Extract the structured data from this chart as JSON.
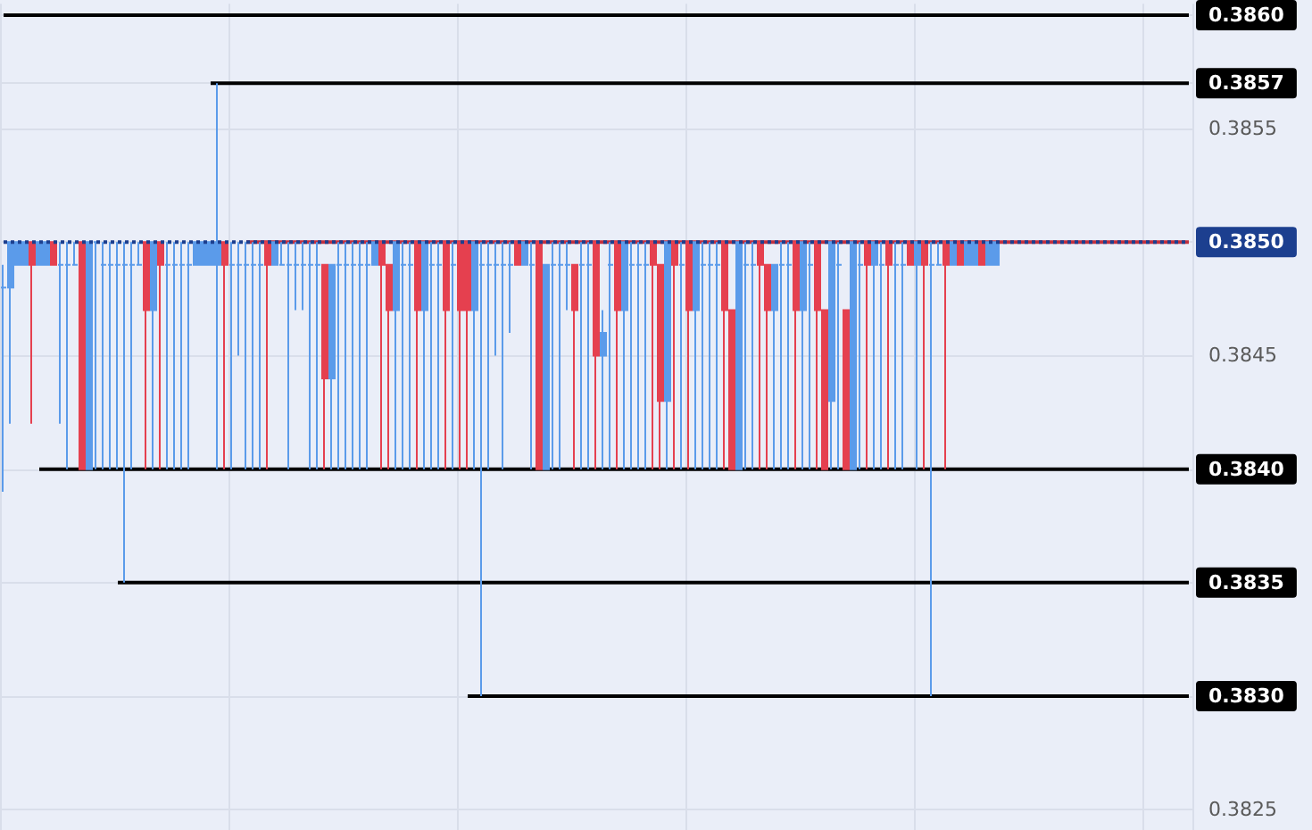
{
  "chart_data": {
    "type": "candlestick",
    "categories": [
      null,
      null,
      null,
      null,
      null,
      null,
      null,
      null,
      null,
      null,
      null,
      null,
      null,
      null,
      null,
      null,
      null,
      null,
      null,
      null,
      null,
      null,
      null,
      null,
      null,
      null,
      null,
      null,
      null,
      null,
      null,
      null,
      null,
      null,
      null,
      null,
      null,
      null,
      null,
      null,
      null,
      null,
      null,
      null,
      null,
      null,
      null,
      null,
      null,
      null,
      null,
      null,
      null,
      null,
      null,
      null,
      null,
      null,
      null,
      null,
      null,
      null,
      null,
      null,
      null,
      null,
      null,
      null,
      null,
      null,
      null,
      null,
      null,
      null,
      null,
      null,
      null,
      null,
      null,
      null,
      null,
      null,
      null,
      null,
      null,
      null,
      null,
      null,
      null,
      null,
      null,
      null,
      null,
      null,
      null,
      null,
      null,
      null,
      null,
      null,
      null,
      null,
      null,
      null,
      null,
      null,
      null,
      null,
      null,
      null,
      null,
      null,
      null,
      null,
      null,
      null,
      null,
      null,
      null,
      null,
      null,
      null,
      null,
      null,
      null,
      null,
      null,
      null,
      null,
      null,
      null,
      null,
      null,
      null,
      null,
      null,
      null,
      null,
      null,
      null,
      null,
      null,
      null,
      null,
      null,
      null,
      null,
      null,
      null,
      null,
      null,
      null,
      null,
      null,
      null,
      null,
      null,
      null,
      null,
      null,
      null,
      null,
      null,
      null,
      null,
      null,
      null
    ],
    "ohlc": [
      [
        0.3848,
        0.3849,
        0.3839,
        0.3848
      ],
      [
        0.3848,
        0.385,
        0.3842,
        0.385
      ],
      [
        0.3849,
        0.385,
        0.3849,
        0.385
      ],
      [
        0.3849,
        0.385,
        0.3849,
        0.385
      ],
      [
        0.385,
        0.385,
        0.3842,
        0.3849
      ],
      [
        0.3849,
        0.385,
        0.3849,
        0.385
      ],
      [
        0.3849,
        0.385,
        0.3849,
        0.385
      ],
      [
        0.385,
        0.385,
        0.3849,
        0.3849
      ],
      [
        0.3849,
        0.385,
        0.3842,
        0.3849
      ],
      [
        0.3849,
        0.385,
        0.384,
        0.3849
      ],
      [
        0.3849,
        0.385,
        0.3849,
        0.3849
      ],
      [
        0.385,
        0.385,
        0.384,
        0.384
      ],
      [
        0.384,
        0.385,
        0.384,
        0.385
      ],
      [
        0.385,
        0.385,
        0.384,
        0.385
      ],
      [
        0.3849,
        0.385,
        0.384,
        0.3849
      ],
      [
        0.3849,
        0.385,
        0.384,
        0.3849
      ],
      [
        0.3849,
        0.385,
        0.384,
        0.3849
      ],
      [
        0.3849,
        0.385,
        0.3835,
        0.3849
      ],
      [
        0.3849,
        0.385,
        0.384,
        0.3849
      ],
      [
        0.3849,
        0.385,
        0.3849,
        0.3849
      ],
      [
        0.385,
        0.385,
        0.384,
        0.3847
      ],
      [
        0.3847,
        0.385,
        0.384,
        0.385
      ],
      [
        0.385,
        0.385,
        0.384,
        0.3849
      ],
      [
        0.3849,
        0.385,
        0.384,
        0.3849
      ],
      [
        0.3849,
        0.385,
        0.384,
        0.3849
      ],
      [
        0.3849,
        0.385,
        0.384,
        0.3849
      ],
      [
        0.3849,
        0.385,
        0.384,
        0.3849
      ],
      [
        0.3849,
        0.385,
        0.3849,
        0.385
      ],
      [
        0.3849,
        0.385,
        0.3849,
        0.385
      ],
      [
        0.3849,
        0.385,
        0.3849,
        0.385
      ],
      [
        0.3849,
        0.3857,
        0.384,
        0.385
      ],
      [
        0.385,
        0.385,
        0.384,
        0.3849
      ],
      [
        0.3849,
        0.385,
        0.384,
        0.3849
      ],
      [
        0.3849,
        0.385,
        0.3845,
        0.3849
      ],
      [
        0.3849,
        0.385,
        0.384,
        0.3849
      ],
      [
        0.3849,
        0.385,
        0.384,
        0.3849
      ],
      [
        0.3849,
        0.385,
        0.384,
        0.3849
      ],
      [
        0.385,
        0.385,
        0.384,
        0.3849
      ],
      [
        0.3849,
        0.385,
        0.3849,
        0.385
      ],
      [
        0.3849,
        0.385,
        0.3849,
        0.3849
      ],
      [
        0.3849,
        0.385,
        0.384,
        0.3849
      ],
      [
        0.3849,
        0.385,
        0.3847,
        0.3849
      ],
      [
        0.3849,
        0.385,
        0.3847,
        0.3849
      ],
      [
        0.3849,
        0.385,
        0.384,
        0.3849
      ],
      [
        0.3849,
        0.385,
        0.384,
        0.3849
      ],
      [
        0.3849,
        0.3849,
        0.384,
        0.3844
      ],
      [
        0.3844,
        0.3849,
        0.384,
        0.3849
      ],
      [
        0.3849,
        0.385,
        0.384,
        0.3849
      ],
      [
        0.3849,
        0.385,
        0.384,
        0.3849
      ],
      [
        0.3849,
        0.385,
        0.384,
        0.3849
      ],
      [
        0.3849,
        0.385,
        0.384,
        0.3849
      ],
      [
        0.3849,
        0.385,
        0.384,
        0.3849
      ],
      [
        0.3849,
        0.385,
        0.3849,
        0.385
      ],
      [
        0.385,
        0.385,
        0.384,
        0.3849
      ],
      [
        0.3849,
        0.3849,
        0.384,
        0.3847
      ],
      [
        0.3847,
        0.385,
        0.384,
        0.385
      ],
      [
        0.3849,
        0.385,
        0.384,
        0.3849
      ],
      [
        0.3849,
        0.385,
        0.384,
        0.3849
      ],
      [
        0.385,
        0.385,
        0.384,
        0.3847
      ],
      [
        0.3847,
        0.385,
        0.384,
        0.385
      ],
      [
        0.3849,
        0.385,
        0.384,
        0.3849
      ],
      [
        0.3849,
        0.385,
        0.384,
        0.3849
      ],
      [
        0.385,
        0.385,
        0.384,
        0.3847
      ],
      [
        0.3849,
        0.385,
        0.384,
        0.3849
      ],
      [
        0.385,
        0.385,
        0.384,
        0.3847
      ],
      [
        0.385,
        0.385,
        0.384,
        0.3847
      ],
      [
        0.3847,
        0.385,
        0.384,
        0.385
      ],
      [
        0.3849,
        0.385,
        0.383,
        0.3849
      ],
      [
        0.3849,
        0.385,
        0.384,
        0.3849
      ],
      [
        0.3849,
        0.385,
        0.3845,
        0.3849
      ],
      [
        0.3849,
        0.385,
        0.384,
        0.3849
      ],
      [
        0.3849,
        0.385,
        0.3846,
        0.3849
      ],
      [
        0.385,
        0.385,
        0.3849,
        0.3849
      ],
      [
        0.3849,
        0.385,
        0.3849,
        0.385
      ],
      [
        0.3849,
        0.385,
        0.384,
        0.3849
      ],
      [
        0.385,
        0.385,
        0.384,
        0.384
      ],
      [
        0.384,
        0.3849,
        0.384,
        0.3849
      ],
      [
        0.3849,
        0.385,
        0.384,
        0.3849
      ],
      [
        0.3849,
        0.385,
        0.384,
        0.3849
      ],
      [
        0.3849,
        0.385,
        0.3847,
        0.3849
      ],
      [
        0.3849,
        0.3849,
        0.384,
        0.3847
      ],
      [
        0.3849,
        0.385,
        0.384,
        0.3849
      ],
      [
        0.3849,
        0.385,
        0.384,
        0.3849
      ],
      [
        0.385,
        0.385,
        0.384,
        0.3845
      ],
      [
        0.3845,
        0.3847,
        0.384,
        0.3846
      ],
      [
        0.3849,
        0.385,
        0.384,
        0.3849
      ],
      [
        0.385,
        0.385,
        0.384,
        0.3847
      ],
      [
        0.3847,
        0.385,
        0.384,
        0.385
      ],
      [
        0.3849,
        0.385,
        0.384,
        0.3849
      ],
      [
        0.3849,
        0.385,
        0.384,
        0.3849
      ],
      [
        0.3849,
        0.385,
        0.384,
        0.3849
      ],
      [
        0.385,
        0.385,
        0.384,
        0.3849
      ],
      [
        0.3849,
        0.3849,
        0.384,
        0.3843
      ],
      [
        0.3843,
        0.385,
        0.384,
        0.385
      ],
      [
        0.385,
        0.385,
        0.384,
        0.3849
      ],
      [
        0.3849,
        0.385,
        0.384,
        0.3849
      ],
      [
        0.385,
        0.385,
        0.384,
        0.3847
      ],
      [
        0.3847,
        0.385,
        0.384,
        0.385
      ],
      [
        0.3849,
        0.385,
        0.384,
        0.3849
      ],
      [
        0.3849,
        0.385,
        0.384,
        0.3849
      ],
      [
        0.3849,
        0.385,
        0.384,
        0.3849
      ],
      [
        0.385,
        0.385,
        0.384,
        0.3847
      ],
      [
        0.3847,
        0.3847,
        0.384,
        0.384
      ],
      [
        0.384,
        0.385,
        0.384,
        0.385
      ],
      [
        0.3849,
        0.385,
        0.384,
        0.3849
      ],
      [
        0.3849,
        0.385,
        0.384,
        0.3849
      ],
      [
        0.385,
        0.385,
        0.384,
        0.3849
      ],
      [
        0.3849,
        0.3849,
        0.384,
        0.3847
      ],
      [
        0.3847,
        0.3849,
        0.384,
        0.3849
      ],
      [
        0.3849,
        0.385,
        0.384,
        0.3849
      ],
      [
        0.3849,
        0.385,
        0.384,
        0.3849
      ],
      [
        0.385,
        0.385,
        0.384,
        0.3847
      ],
      [
        0.3847,
        0.385,
        0.384,
        0.385
      ],
      [
        0.3849,
        0.385,
        0.384,
        0.3849
      ],
      [
        0.385,
        0.385,
        0.384,
        0.3847
      ],
      [
        0.3847,
        0.3847,
        0.384,
        0.384
      ],
      [
        0.3843,
        0.385,
        0.384,
        0.385
      ],
      [
        0.3849,
        0.385,
        0.384,
        0.3849
      ],
      [
        0.3847,
        0.3847,
        0.384,
        0.384
      ],
      [
        0.384,
        0.385,
        0.384,
        0.385
      ],
      [
        0.3849,
        0.385,
        0.384,
        0.3849
      ],
      [
        0.385,
        0.385,
        0.384,
        0.3849
      ],
      [
        0.3849,
        0.385,
        0.384,
        0.385
      ],
      [
        0.3849,
        0.385,
        0.384,
        0.3849
      ],
      [
        0.385,
        0.385,
        0.384,
        0.3849
      ],
      [
        0.3849,
        0.385,
        0.384,
        0.3849
      ],
      [
        0.3849,
        0.385,
        0.384,
        0.3849
      ],
      [
        0.385,
        0.385,
        0.3849,
        0.3849
      ],
      [
        0.3849,
        0.385,
        0.384,
        0.385
      ],
      [
        0.385,
        0.385,
        0.384,
        0.3849
      ],
      [
        0.3849,
        0.385,
        0.383,
        0.3849
      ],
      [
        0.3849,
        0.385,
        0.3849,
        0.3849
      ],
      [
        0.385,
        0.385,
        0.384,
        0.3849
      ],
      [
        0.3849,
        0.385,
        0.3849,
        0.385
      ],
      [
        0.385,
        0.385,
        0.3849,
        0.3849
      ],
      [
        0.3849,
        0.385,
        0.3849,
        0.385
      ],
      [
        0.3849,
        0.385,
        0.3849,
        0.385
      ],
      [
        0.385,
        0.385,
        0.3849,
        0.3849
      ],
      [
        0.3849,
        0.385,
        0.3849,
        0.385
      ],
      [
        0.3849,
        0.385,
        0.3849,
        0.385
      ],
      null,
      null,
      null,
      null,
      null,
      null,
      null,
      null,
      null,
      null,
      null,
      null,
      null,
      null,
      null,
      null,
      null,
      null,
      null,
      null,
      null,
      null,
      null,
      null,
      null,
      null,
      null
    ],
    "colors": [
      "#5b9bea",
      "#5b9bea",
      "#5b9bea",
      "#5b9bea",
      "#e5404f",
      "#5b9bea",
      "#5b9bea",
      "#e5404f",
      "#5b9bea",
      "#5b9bea",
      "#5b9bea",
      "#e5404f",
      "#5b9bea",
      "#5b9bea",
      "#5b9bea",
      "#5b9bea",
      "#5b9bea",
      "#5b9bea",
      "#5b9bea",
      "#5b9bea",
      "#e5404f",
      "#5b9bea",
      "#e5404f",
      "#5b9bea",
      "#5b9bea",
      "#5b9bea",
      "#5b9bea",
      "#5b9bea",
      "#5b9bea",
      "#5b9bea",
      "#5b9bea",
      "#e5404f",
      "#5b9bea",
      "#5b9bea",
      "#5b9bea",
      "#5b9bea",
      "#5b9bea",
      "#e5404f",
      "#5b9bea",
      "#5b9bea",
      "#5b9bea",
      "#5b9bea",
      "#5b9bea",
      "#5b9bea",
      "#5b9bea",
      "#e5404f",
      "#5b9bea",
      "#5b9bea",
      "#5b9bea",
      "#5b9bea",
      "#5b9bea",
      "#5b9bea",
      "#5b9bea",
      "#e5404f",
      "#e5404f",
      "#5b9bea",
      "#5b9bea",
      "#5b9bea",
      "#e5404f",
      "#5b9bea",
      "#5b9bea",
      "#5b9bea",
      "#e5404f",
      "#5b9bea",
      "#e5404f",
      "#e5404f",
      "#5b9bea",
      "#5b9bea",
      "#5b9bea",
      "#5b9bea",
      "#5b9bea",
      "#5b9bea",
      "#e5404f",
      "#5b9bea",
      "#5b9bea",
      "#e5404f",
      "#5b9bea",
      "#5b9bea",
      "#5b9bea",
      "#5b9bea",
      "#e5404f",
      "#5b9bea",
      "#5b9bea",
      "#e5404f",
      "#5b9bea",
      "#5b9bea",
      "#e5404f",
      "#5b9bea",
      "#5b9bea",
      "#5b9bea",
      "#5b9bea",
      "#e5404f",
      "#e5404f",
      "#5b9bea",
      "#e5404f",
      "#5b9bea",
      "#e5404f",
      "#5b9bea",
      "#5b9bea",
      "#5b9bea",
      "#5b9bea",
      "#e5404f",
      "#e5404f",
      "#5b9bea",
      "#5b9bea",
      "#5b9bea",
      "#e5404f",
      "#e5404f",
      "#5b9bea",
      "#5b9bea",
      "#5b9bea",
      "#e5404f",
      "#5b9bea",
      "#5b9bea",
      "#e5404f",
      "#e5404f",
      "#5b9bea",
      "#5b9bea",
      "#e5404f",
      "#5b9bea",
      "#5b9bea",
      "#e5404f",
      "#5b9bea",
      "#5b9bea",
      "#e5404f",
      "#5b9bea",
      "#5b9bea",
      "#e5404f",
      "#5b9bea",
      "#e5404f",
      "#5b9bea",
      "#5b9bea",
      "#e5404f",
      "#5b9bea",
      "#e5404f",
      "#5b9bea",
      "#5b9bea",
      "#e5404f",
      "#5b9bea",
      "#5b9bea",
      null,
      null,
      null,
      null,
      null,
      null,
      null,
      null,
      null,
      null,
      null,
      null,
      null,
      null,
      null,
      null,
      null,
      null,
      null,
      null,
      null,
      null,
      null,
      null,
      null,
      null,
      null
    ],
    "series": [
      {
        "type": "line",
        "color": "#000000",
        "values": [
          0.386,
          0.386,
          0.386,
          0.386,
          0.386,
          0.386,
          0.386,
          0.386,
          0.386,
          0.386,
          0.386,
          0.386,
          0.386,
          0.386,
          0.386,
          0.386,
          0.386,
          0.386,
          0.386,
          0.386,
          0.386,
          0.386,
          0.386,
          0.386,
          0.386,
          0.386,
          0.386,
          0.386,
          0.386,
          0.386,
          0.386,
          0.386,
          0.386,
          0.386,
          0.386,
          0.386,
          0.386,
          0.386,
          0.386,
          0.386,
          0.386,
          0.386,
          0.386,
          0.386,
          0.386,
          0.386,
          0.386,
          0.386,
          0.386,
          0.386,
          0.386,
          0.386,
          0.386,
          0.386,
          0.386,
          0.386,
          0.386,
          0.386,
          0.386,
          0.386,
          0.386,
          0.386,
          0.386,
          0.386,
          0.386,
          0.386,
          0.386,
          0.386,
          0.386,
          0.386,
          0.386,
          0.386,
          0.386,
          0.386,
          0.386,
          0.386,
          0.386,
          0.386,
          0.386,
          0.386,
          0.386,
          0.386,
          0.386,
          0.386,
          0.386,
          0.386,
          0.386,
          0.386,
          0.386,
          0.386,
          0.386,
          0.386,
          0.386,
          0.386,
          0.386,
          0.386,
          0.386,
          0.386,
          0.386,
          0.386,
          0.386,
          0.386,
          0.386,
          0.386,
          0.386,
          0.386,
          0.386,
          0.386,
          0.386,
          0.386,
          0.386,
          0.386,
          0.386,
          0.386,
          0.386,
          0.386,
          0.386,
          0.386,
          0.386,
          0.386,
          0.386,
          0.386,
          0.386,
          0.386,
          0.386,
          0.386,
          0.386,
          0.386,
          0.386,
          0.386,
          0.386,
          0.386,
          0.386,
          0.386,
          0.386,
          0.386,
          0.386,
          0.386,
          0.386,
          0.386,
          0.386,
          0.386,
          0.386,
          0.386,
          0.386,
          0.386,
          0.386,
          0.386,
          0.386,
          0.386,
          0.386,
          0.386,
          0.386,
          0.386,
          0.386,
          0.386,
          0.386,
          0.386,
          0.386,
          0.386,
          0.386,
          0.386,
          0.386,
          0.386,
          0.386,
          0.386,
          0.386
        ]
      },
      {
        "type": "line",
        "color": "#000000",
        "values": [
          null,
          null,
          null,
          null,
          null,
          null,
          null,
          null,
          null,
          null,
          null,
          null,
          null,
          null,
          null,
          null,
          null,
          null,
          null,
          null,
          null,
          null,
          null,
          null,
          null,
          null,
          null,
          null,
          null,
          0.3857,
          0.3857,
          0.3857,
          0.3857,
          0.3857,
          0.3857,
          0.3857,
          0.3857,
          0.3857,
          0.3857,
          0.3857,
          0.3857,
          0.3857,
          0.3857,
          0.3857,
          0.3857,
          0.3857,
          0.3857,
          0.3857,
          0.3857,
          0.3857,
          0.3857,
          0.3857,
          0.3857,
          0.3857,
          0.3857,
          0.3857,
          0.3857,
          0.3857,
          0.3857,
          0.3857,
          0.3857,
          0.3857,
          0.3857,
          0.3857,
          0.3857,
          0.3857,
          0.3857,
          0.3857,
          0.3857,
          0.3857,
          0.3857,
          0.3857,
          0.3857,
          0.3857,
          0.3857,
          0.3857,
          0.3857,
          0.3857,
          0.3857,
          0.3857,
          0.3857,
          0.3857,
          0.3857,
          0.3857,
          0.3857,
          0.3857,
          0.3857,
          0.3857,
          0.3857,
          0.3857,
          0.3857,
          0.3857,
          0.3857,
          0.3857,
          0.3857,
          0.3857,
          0.3857,
          0.3857,
          0.3857,
          0.3857,
          0.3857,
          0.3857,
          0.3857,
          0.3857,
          0.3857,
          0.3857,
          0.3857,
          0.3857,
          0.3857,
          0.3857,
          0.3857,
          0.3857,
          0.3857,
          0.3857,
          0.3857,
          0.3857,
          0.3857,
          0.3857,
          0.3857,
          0.3857,
          0.3857,
          0.3857,
          0.3857,
          0.3857,
          0.3857,
          0.3857,
          0.3857,
          0.3857,
          0.3857,
          0.3857,
          0.3857,
          0.3857,
          0.3857,
          0.3857,
          0.3857,
          0.3857,
          0.3857,
          0.3857,
          0.3857,
          0.3857,
          0.3857,
          0.3857,
          0.3857,
          0.3857,
          0.3857,
          0.3857,
          0.3857,
          0.3857,
          0.3857,
          0.3857,
          0.3857,
          0.3857,
          0.3857,
          0.3857,
          0.3857,
          0.3857,
          0.3857,
          0.3857,
          0.3857,
          0.3857,
          0.3857,
          0.3857,
          0.3857,
          0.3857,
          0.3857,
          0.3857,
          0.3857
        ]
      },
      {
        "type": "line",
        "color": "#000000",
        "values": [
          null,
          null,
          null,
          null,
          null,
          0.384,
          0.384,
          0.384,
          0.384,
          0.384,
          0.384,
          0.384,
          0.384,
          0.384,
          0.384,
          0.384,
          0.384,
          0.384,
          0.384,
          0.384,
          0.384,
          0.384,
          0.384,
          0.384,
          0.384,
          0.384,
          0.384,
          0.384,
          0.384,
          0.384,
          0.384,
          0.384,
          0.384,
          0.384,
          0.384,
          0.384,
          0.384,
          0.384,
          0.384,
          0.384,
          0.384,
          0.384,
          0.384,
          0.384,
          0.384,
          0.384,
          0.384,
          0.384,
          0.384,
          0.384,
          0.384,
          0.384,
          0.384,
          0.384,
          0.384,
          0.384,
          0.384,
          0.384,
          0.384,
          0.384,
          0.384,
          0.384,
          0.384,
          0.384,
          0.384,
          0.384,
          0.384,
          0.384,
          0.384,
          0.384,
          0.384,
          0.384,
          0.384,
          0.384,
          0.384,
          0.384,
          0.384,
          0.384,
          0.384,
          0.384,
          0.384,
          0.384,
          0.384,
          0.384,
          0.384,
          0.384,
          0.384,
          0.384,
          0.384,
          0.384,
          0.384,
          0.384,
          0.384,
          0.384,
          0.384,
          0.384,
          0.384,
          0.384,
          0.384,
          0.384,
          0.384,
          0.384,
          0.384,
          0.384,
          0.384,
          0.384,
          0.384,
          0.384,
          0.384,
          0.384,
          0.384,
          0.384,
          0.384,
          0.384,
          0.384,
          0.384,
          0.384,
          0.384,
          0.384,
          0.384,
          0.384,
          0.384,
          0.384,
          0.384,
          0.384,
          0.384,
          0.384,
          0.384,
          0.384,
          0.384,
          0.384,
          0.384,
          0.384,
          0.384,
          0.384,
          0.384,
          0.384,
          0.384,
          0.384,
          0.384,
          0.384,
          0.384,
          0.384,
          0.384,
          0.384,
          0.384,
          0.384,
          0.384,
          0.384,
          0.384,
          0.384,
          0.384,
          0.384,
          0.384,
          0.384,
          0.384,
          0.384,
          0.384,
          0.384,
          0.384,
          0.384,
          0.384,
          0.384,
          0.384,
          0.384,
          0.384,
          0.384
        ]
      },
      {
        "type": "line",
        "color": "#000000",
        "values": [
          null,
          null,
          null,
          null,
          null,
          null,
          null,
          null,
          null,
          null,
          null,
          null,
          null,
          null,
          null,
          null,
          0.3835,
          0.3835,
          0.3835,
          0.3835,
          0.3835,
          0.3835,
          0.3835,
          0.3835,
          0.3835,
          0.3835,
          0.3835,
          0.3835,
          0.3835,
          0.3835,
          0.3835,
          0.3835,
          0.3835,
          0.3835,
          0.3835,
          0.3835,
          0.3835,
          0.3835,
          0.3835,
          0.3835,
          0.3835,
          0.3835,
          0.3835,
          0.3835,
          0.3835,
          0.3835,
          0.3835,
          0.3835,
          0.3835,
          0.3835,
          0.3835,
          0.3835,
          0.3835,
          0.3835,
          0.3835,
          0.3835,
          0.3835,
          0.3835,
          0.3835,
          0.3835,
          0.3835,
          0.3835,
          0.3835,
          0.3835,
          0.3835,
          0.3835,
          0.3835,
          0.3835,
          0.3835,
          0.3835,
          0.3835,
          0.3835,
          0.3835,
          0.3835,
          0.3835,
          0.3835,
          0.3835,
          0.3835,
          0.3835,
          0.3835,
          0.3835,
          0.3835,
          0.3835,
          0.3835,
          0.3835,
          0.3835,
          0.3835,
          0.3835,
          0.3835,
          0.3835,
          0.3835,
          0.3835,
          0.3835,
          0.3835,
          0.3835,
          0.3835,
          0.3835,
          0.3835,
          0.3835,
          0.3835,
          0.3835,
          0.3835,
          0.3835,
          0.3835,
          0.3835,
          0.3835,
          0.3835,
          0.3835,
          0.3835,
          0.3835,
          0.3835,
          0.3835,
          0.3835,
          0.3835,
          0.3835,
          0.3835,
          0.3835,
          0.3835,
          0.3835,
          0.3835,
          0.3835,
          0.3835,
          0.3835,
          0.3835,
          0.3835,
          0.3835,
          0.3835,
          0.3835,
          0.3835,
          0.3835,
          0.3835,
          0.3835,
          0.3835,
          0.3835,
          0.3835,
          0.3835,
          0.3835,
          0.3835,
          0.3835,
          0.3835,
          0.3835,
          0.3835,
          0.3835,
          0.3835,
          0.3835,
          0.3835,
          0.3835,
          0.3835,
          0.3835,
          0.3835,
          0.3835,
          0.3835,
          0.3835,
          0.3835,
          0.3835,
          0.3835,
          0.3835,
          0.3835,
          0.3835,
          0.3835,
          0.3835,
          0.3835,
          0.3835,
          0.3835,
          0.3835,
          0.3835,
          0.3835
        ]
      },
      {
        "type": "line",
        "color": "#000000",
        "values": [
          null,
          null,
          null,
          null,
          null,
          null,
          null,
          null,
          null,
          null,
          null,
          null,
          null,
          null,
          null,
          null,
          null,
          null,
          null,
          null,
          null,
          null,
          null,
          null,
          null,
          null,
          null,
          null,
          null,
          null,
          null,
          null,
          null,
          null,
          null,
          null,
          null,
          null,
          null,
          null,
          null,
          null,
          null,
          null,
          null,
          null,
          null,
          null,
          null,
          null,
          null,
          null,
          null,
          null,
          null,
          null,
          null,
          null,
          null,
          null,
          null,
          null,
          null,
          null,
          null,
          0.383,
          0.383,
          0.383,
          0.383,
          0.383,
          0.383,
          0.383,
          0.383,
          0.383,
          0.383,
          0.383,
          0.383,
          0.383,
          0.383,
          0.383,
          0.383,
          0.383,
          0.383,
          0.383,
          0.383,
          0.383,
          0.383,
          0.383,
          0.383,
          0.383,
          0.383,
          0.383,
          0.383,
          0.383,
          0.383,
          0.383,
          0.383,
          0.383,
          0.383,
          0.383,
          0.383,
          0.383,
          0.383,
          0.383,
          0.383,
          0.383,
          0.383,
          0.383,
          0.383,
          0.383,
          0.383,
          0.383,
          0.383,
          0.383,
          0.383,
          0.383,
          0.383,
          0.383,
          0.383,
          0.383,
          0.383,
          0.383,
          0.383,
          0.383,
          0.383,
          0.383,
          0.383,
          0.383,
          0.383,
          0.383,
          0.383,
          0.383,
          0.383,
          0.383,
          0.383,
          0.383,
          0.383,
          0.383,
          0.383,
          0.383,
          0.383,
          0.383,
          0.383,
          0.383,
          0.383,
          0.383,
          0.383,
          0.383,
          0.383,
          0.383,
          0.383,
          0.383,
          0.383,
          0.383,
          0.383,
          0.383,
          0.383,
          0.383,
          0.383,
          0.383,
          0.383,
          0.383,
          0.383,
          0.383,
          0.383,
          0.383,
          0.383
        ]
      },
      {
        "type": "line",
        "color": "#c2303f",
        "values": [
          null,
          null,
          null,
          null,
          null,
          null,
          null,
          null,
          null,
          null,
          null,
          null,
          null,
          null,
          null,
          null,
          null,
          null,
          null,
          null,
          null,
          null,
          null,
          null,
          null,
          null,
          null,
          null,
          null,
          null,
          null,
          null,
          null,
          null,
          0.385,
          0.385,
          0.385,
          0.385,
          0.385,
          0.385,
          0.385,
          0.385,
          0.385,
          0.385,
          0.385,
          0.385,
          0.385,
          0.385,
          0.385,
          0.385,
          0.385,
          0.385,
          0.385,
          0.385,
          0.385,
          0.385,
          0.385,
          0.385,
          0.385,
          0.385,
          0.385,
          0.385,
          0.385,
          0.385,
          0.385,
          0.385,
          0.385,
          0.385,
          0.385,
          0.385,
          0.385,
          0.385,
          0.385,
          0.385,
          0.385,
          0.385,
          0.385,
          0.385,
          0.385,
          0.385,
          0.385,
          0.385,
          0.385,
          0.385,
          0.385,
          0.385,
          0.385,
          0.385,
          0.385,
          0.385,
          0.385,
          0.385,
          0.385,
          0.385,
          0.385,
          0.385,
          0.385,
          0.385,
          0.385,
          0.385,
          0.385,
          0.385,
          0.385,
          0.385,
          0.385,
          0.385,
          0.385,
          0.385,
          0.385,
          0.385,
          0.385,
          0.385,
          0.385,
          0.385,
          0.385,
          0.385,
          0.385,
          0.385,
          0.385,
          0.385,
          0.385,
          0.385,
          0.385,
          0.385,
          0.385,
          0.385,
          0.385,
          0.385,
          0.385,
          0.385,
          0.385,
          0.385,
          0.385,
          0.385,
          0.385,
          0.385,
          0.385,
          0.385,
          0.385,
          0.385,
          0.385,
          0.385,
          0.385,
          0.385,
          0.385,
          0.385,
          0.385,
          0.385,
          0.385,
          0.385,
          0.385,
          0.385,
          0.385,
          0.385,
          0.385,
          0.385,
          0.385,
          0.385,
          0.385,
          0.385,
          0.385,
          0.385,
          0.385,
          0.385,
          0.385,
          0.385,
          0.385
        ]
      },
      {
        "type": "line",
        "color": "#1c3f8f",
        "line_style": "dotted",
        "values": [
          0.385,
          0.385,
          0.385,
          0.385,
          0.385,
          0.385,
          0.385,
          0.385,
          0.385,
          0.385,
          0.385,
          0.385,
          0.385,
          0.385,
          0.385,
          0.385,
          0.385,
          0.385,
          0.385,
          0.385,
          0.385,
          0.385,
          0.385,
          0.385,
          0.385,
          0.385,
          0.385,
          0.385,
          0.385,
          0.385,
          0.385,
          0.385,
          0.385,
          0.385,
          0.385,
          0.385,
          0.385,
          0.385,
          0.385,
          0.385,
          0.385,
          0.385,
          0.385,
          0.385,
          0.385,
          0.385,
          0.385,
          0.385,
          0.385,
          0.385,
          0.385,
          0.385,
          0.385,
          0.385,
          0.385,
          0.385,
          0.385,
          0.385,
          0.385,
          0.385,
          0.385,
          0.385,
          0.385,
          0.385,
          0.385,
          0.385,
          0.385,
          0.385,
          0.385,
          0.385,
          0.385,
          0.385,
          0.385,
          0.385,
          0.385,
          0.385,
          0.385,
          0.385,
          0.385,
          0.385,
          0.385,
          0.385,
          0.385,
          0.385,
          0.385,
          0.385,
          0.385,
          0.385,
          0.385,
          0.385,
          0.385,
          0.385,
          0.385,
          0.385,
          0.385,
          0.385,
          0.385,
          0.385,
          0.385,
          0.385,
          0.385,
          0.385,
          0.385,
          0.385,
          0.385,
          0.385,
          0.385,
          0.385,
          0.385,
          0.385,
          0.385,
          0.385,
          0.385,
          0.385,
          0.385,
          0.385,
          0.385,
          0.385,
          0.385,
          0.385,
          0.385,
          0.385,
          0.385,
          0.385,
          0.385,
          0.385,
          0.385,
          0.385,
          0.385,
          0.385,
          0.385,
          0.385,
          0.385,
          0.385,
          0.385,
          0.385,
          0.385,
          0.385,
          0.385,
          0.385,
          0.385,
          0.385,
          0.385,
          0.385,
          0.385,
          0.385,
          0.385,
          0.385,
          0.385,
          0.385,
          0.385,
          0.385,
          0.385,
          0.385,
          0.385,
          0.385,
          0.385,
          0.385,
          0.385,
          0.385,
          0.385,
          0.385,
          0.385,
          0.385,
          0.385,
          0.385,
          0.385
        ]
      }
    ],
    "ylim": [
      0.38241,
      0.38605
    ],
    "yticks": [
      0.3825,
      {
        "value": 0.383,
        "label": "0.3830"
      },
      {
        "value": 0.3835,
        "label": "0.3835"
      },
      {
        "value": 0.384,
        "label": "0.3840"
      },
      0.3845,
      {
        "value": 0.385,
        "label": "0.3850"
      },
      0.3855,
      {
        "value": 0.3857,
        "label": "0.3857"
      },
      {
        "value": 0.386,
        "label": "0.3860"
      }
    ],
    "grid": true,
    "marker": "none"
  }
}
